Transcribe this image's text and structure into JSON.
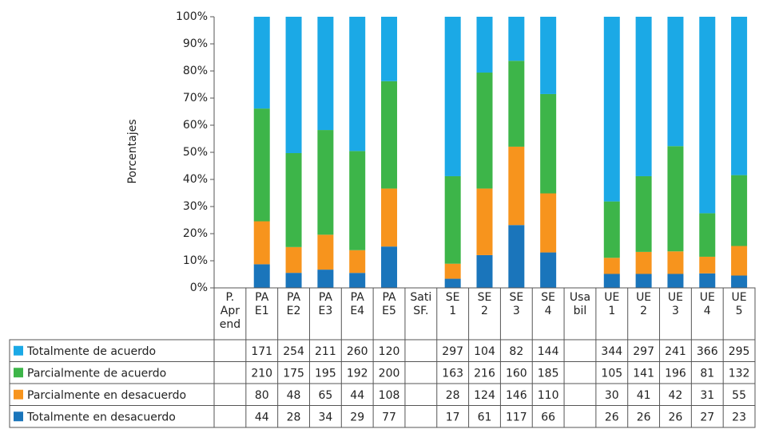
{
  "chart_data": {
    "type": "stacked_percent_bar",
    "y_label": "Porcentajes",
    "ylim": [
      0,
      100
    ],
    "yticks": [
      {
        "value": 0,
        "label": "0%"
      },
      {
        "value": 10,
        "label": "10%"
      },
      {
        "value": 20,
        "label": "20%"
      },
      {
        "value": 30,
        "label": "30%"
      },
      {
        "value": 40,
        "label": "40%"
      },
      {
        "value": 50,
        "label": "50%"
      },
      {
        "value": 60,
        "label": "60%"
      },
      {
        "value": 70,
        "label": "70%"
      },
      {
        "value": 80,
        "label": "80%"
      },
      {
        "value": 90,
        "label": "90%"
      },
      {
        "value": 100,
        "label": "100%"
      }
    ],
    "categories": [
      [
        "P.",
        "Apr",
        "end"
      ],
      [
        "PA",
        "E1"
      ],
      [
        "PA",
        "E2"
      ],
      [
        "PA",
        "E3"
      ],
      [
        "PA",
        "E4"
      ],
      [
        "PA",
        "E5"
      ],
      [
        "Sati",
        "SF."
      ],
      [
        "SE",
        "1"
      ],
      [
        "SE",
        "2"
      ],
      [
        "SE",
        "3"
      ],
      [
        "SE",
        "4"
      ],
      [
        "Usa",
        "bil"
      ],
      [
        "UE",
        "1"
      ],
      [
        "UE",
        "2"
      ],
      [
        "UE",
        "3"
      ],
      [
        "UE",
        "4"
      ],
      [
        "UE",
        "5"
      ]
    ],
    "series": [
      {
        "name": "Totalmente de acuerdo",
        "color": "#1ba9e6",
        "values": [
          null,
          171,
          254,
          211,
          260,
          120,
          null,
          297,
          104,
          82,
          144,
          null,
          344,
          297,
          241,
          366,
          295
        ]
      },
      {
        "name": "Parcialmente de acuerdo",
        "color": "#3db549",
        "values": [
          null,
          210,
          175,
          195,
          192,
          200,
          null,
          163,
          216,
          160,
          185,
          null,
          105,
          141,
          196,
          81,
          132
        ]
      },
      {
        "name": "Parcialmente en desacuerdo",
        "color": "#f7941d",
        "values": [
          null,
          80,
          48,
          65,
          44,
          108,
          null,
          28,
          124,
          146,
          110,
          null,
          30,
          41,
          42,
          31,
          55
        ]
      },
      {
        "name": "Totalmente en desacuerdo",
        "color": "#1a75bb",
        "values": [
          null,
          44,
          28,
          34,
          29,
          77,
          null,
          17,
          61,
          117,
          66,
          null,
          26,
          26,
          26,
          27,
          23
        ]
      }
    ]
  }
}
